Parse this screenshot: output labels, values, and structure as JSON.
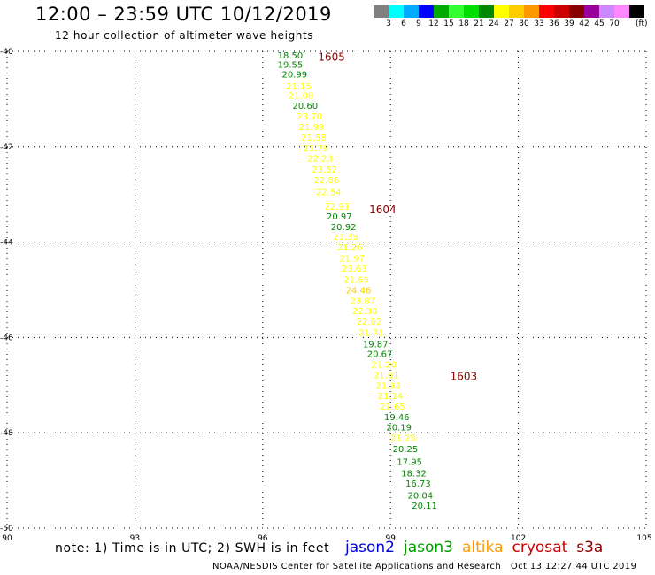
{
  "header": {
    "title": "12:00 – 23:59 UTC 10/12/2019",
    "subtitle": "12 hour collection of altimeter wave heights"
  },
  "legend": {
    "colors": [
      "#808080",
      "#00ffff",
      "#00aaff",
      "#0000ff",
      "#00aa00",
      "#33ff33",
      "#00dd00",
      "#008800",
      "#ffff00",
      "#ffcc00",
      "#ff9900",
      "#ff0000",
      "#cc0000",
      "#880000",
      "#990099",
      "#cc88ff",
      "#ff88ff",
      "#000000"
    ],
    "labels": [
      "3",
      "6",
      "9",
      "12",
      "15",
      "18",
      "21",
      "24",
      "27",
      "30",
      "33",
      "36",
      "39",
      "42",
      "45",
      "70"
    ],
    "unit": "(ft)"
  },
  "map": {
    "lon_min": 90,
    "lon_max": 105,
    "lat_min": -50,
    "lat_max": -40,
    "x_ticks": [
      "90",
      "93",
      "96",
      "99",
      "102",
      "105"
    ],
    "y_ticks": [
      "-40",
      "-42",
      "-44",
      "-46",
      "-48",
      "-50"
    ],
    "grid": "dotted",
    "swh_colors": {
      "green": "#008800",
      "yellow": "#ffff00",
      "orange": "#ffcc00",
      "maroon": "#880000"
    },
    "times": [
      {
        "label": "1605",
        "lon": 97.3,
        "lat": -40.1
      },
      {
        "label": "1604",
        "lon": 98.5,
        "lat": -43.3
      },
      {
        "label": "1603",
        "lon": 100.4,
        "lat": -46.8
      }
    ],
    "observations": [
      {
        "value": "18.50",
        "lon": 96.35,
        "lat": -40.07,
        "color": "green"
      },
      {
        "value": "19.55",
        "lon": 96.35,
        "lat": -40.27,
        "color": "green"
      },
      {
        "value": "20.99",
        "lon": 96.45,
        "lat": -40.47,
        "color": "green"
      },
      {
        "value": "21.15",
        "lon": 96.55,
        "lat": -40.72,
        "color": "yellow"
      },
      {
        "value": "21.08",
        "lon": 96.6,
        "lat": -40.92,
        "color": "yellow"
      },
      {
        "value": "20.60",
        "lon": 96.7,
        "lat": -41.13,
        "color": "green"
      },
      {
        "value": "23.70",
        "lon": 96.8,
        "lat": -41.35,
        "color": "yellow"
      },
      {
        "value": "21.99",
        "lon": 96.85,
        "lat": -41.58,
        "color": "yellow"
      },
      {
        "value": "21.58",
        "lon": 96.9,
        "lat": -41.8,
        "color": "yellow"
      },
      {
        "value": "21.79",
        "lon": 96.95,
        "lat": -42.02,
        "color": "yellow"
      },
      {
        "value": "22.23",
        "lon": 97.05,
        "lat": -42.24,
        "color": "yellow"
      },
      {
        "value": "23.52",
        "lon": 97.15,
        "lat": -42.47,
        "color": "yellow"
      },
      {
        "value": "22.86",
        "lon": 97.2,
        "lat": -42.69,
        "color": "yellow"
      },
      {
        "value": "22.54",
        "lon": 97.25,
        "lat": -42.94,
        "color": "yellow"
      },
      {
        "value": "22.91",
        "lon": 97.45,
        "lat": -43.25,
        "color": "yellow"
      },
      {
        "value": "20.97",
        "lon": 97.5,
        "lat": -43.45,
        "color": "green"
      },
      {
        "value": "20.92",
        "lon": 97.6,
        "lat": -43.67,
        "color": "green"
      },
      {
        "value": "21.39",
        "lon": 97.65,
        "lat": -43.88,
        "color": "yellow"
      },
      {
        "value": "21.26",
        "lon": 97.75,
        "lat": -44.1,
        "color": "yellow"
      },
      {
        "value": "21.97",
        "lon": 97.8,
        "lat": -44.33,
        "color": "yellow"
      },
      {
        "value": "23.63",
        "lon": 97.85,
        "lat": -44.55,
        "color": "yellow"
      },
      {
        "value": "21.69",
        "lon": 97.9,
        "lat": -44.78,
        "color": "yellow"
      },
      {
        "value": "24.46",
        "lon": 97.95,
        "lat": -45.0,
        "color": "orange"
      },
      {
        "value": "23.87",
        "lon": 98.05,
        "lat": -45.22,
        "color": "yellow"
      },
      {
        "value": "22.30",
        "lon": 98.1,
        "lat": -45.44,
        "color": "yellow"
      },
      {
        "value": "22.02",
        "lon": 98.2,
        "lat": -45.66,
        "color": "yellow"
      },
      {
        "value": "21.71",
        "lon": 98.25,
        "lat": -45.89,
        "color": "yellow"
      },
      {
        "value": "19.87",
        "lon": 98.35,
        "lat": -46.13,
        "color": "green"
      },
      {
        "value": "20.67",
        "lon": 98.45,
        "lat": -46.34,
        "color": "green"
      },
      {
        "value": "21.20",
        "lon": 98.55,
        "lat": -46.56,
        "color": "yellow"
      },
      {
        "value": "21.61",
        "lon": 98.6,
        "lat": -46.78,
        "color": "yellow"
      },
      {
        "value": "21.33",
        "lon": 98.65,
        "lat": -47.0,
        "color": "yellow"
      },
      {
        "value": "21.14",
        "lon": 98.7,
        "lat": -47.22,
        "color": "yellow"
      },
      {
        "value": "21.65",
        "lon": 98.75,
        "lat": -47.44,
        "color": "yellow"
      },
      {
        "value": "19.46",
        "lon": 98.85,
        "lat": -47.66,
        "color": "green"
      },
      {
        "value": "20.19",
        "lon": 98.9,
        "lat": -47.88,
        "color": "green"
      },
      {
        "value": "21.25",
        "lon": 99.0,
        "lat": -48.1,
        "color": "yellow"
      },
      {
        "value": "20.25",
        "lon": 99.05,
        "lat": -48.33,
        "color": "green"
      },
      {
        "value": "17.95",
        "lon": 99.15,
        "lat": -48.6,
        "color": "green"
      },
      {
        "value": "18.32",
        "lon": 99.25,
        "lat": -48.84,
        "color": "green"
      },
      {
        "value": "16.73",
        "lon": 99.35,
        "lat": -49.05,
        "color": "green"
      },
      {
        "value": "20.04",
        "lon": 99.4,
        "lat": -49.3,
        "color": "green"
      },
      {
        "value": "20.11",
        "lon": 99.5,
        "lat": -49.52,
        "color": "green"
      }
    ]
  },
  "footer": {
    "note": "note: 1) Time is in UTC; 2) SWH is in feet",
    "satellites": [
      {
        "name": "jason2",
        "color": "#0000dd"
      },
      {
        "name": "jason3",
        "color": "#009900"
      },
      {
        "name": "altika",
        "color": "#ff9900"
      },
      {
        "name": "cryosat",
        "color": "#cc0000"
      },
      {
        "name": "s3a",
        "color": "#880000"
      }
    ],
    "credit": "NOAA/NESDIS Center for Satellite Applications and Research",
    "timestamp": "Oct 13 12:27:44 UTC 2019"
  }
}
